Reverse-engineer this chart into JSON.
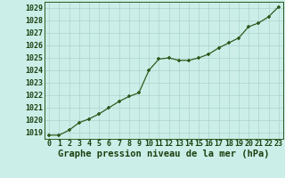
{
  "x": [
    0,
    1,
    2,
    3,
    4,
    5,
    6,
    7,
    8,
    9,
    10,
    11,
    12,
    13,
    14,
    15,
    16,
    17,
    18,
    19,
    20,
    21,
    22,
    23
  ],
  "y": [
    1018.8,
    1018.8,
    1019.2,
    1019.8,
    1020.1,
    1020.5,
    1021.0,
    1021.5,
    1021.9,
    1022.2,
    1024.0,
    1024.9,
    1025.0,
    1024.8,
    1024.8,
    1025.0,
    1025.3,
    1025.8,
    1026.2,
    1026.6,
    1027.5,
    1027.8,
    1028.3,
    1029.1
  ],
  "ylim_min": 1018.5,
  "ylim_max": 1029.5,
  "yticks": [
    1019,
    1020,
    1021,
    1022,
    1023,
    1024,
    1025,
    1026,
    1027,
    1028,
    1029
  ],
  "xticks": [
    0,
    1,
    2,
    3,
    4,
    5,
    6,
    7,
    8,
    9,
    10,
    11,
    12,
    13,
    14,
    15,
    16,
    17,
    18,
    19,
    20,
    21,
    22,
    23
  ],
  "xlabel": "Graphe pression niveau de la mer (hPa)",
  "line_color": "#2d5a1e",
  "marker": "+",
  "bg_color": "#cceee8",
  "grid_color": "#aad4ce",
  "label_color": "#1a4010",
  "xlabel_fontsize": 7.5,
  "tick_fontsize": 6.0,
  "marker_size": 3.5,
  "linewidth": 0.9
}
